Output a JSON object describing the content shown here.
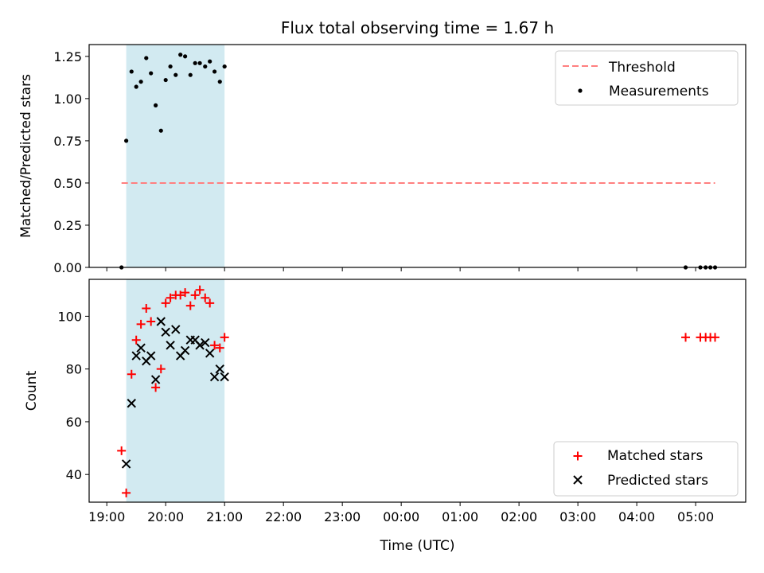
{
  "chart_data": {
    "type": "scatter",
    "title": "Flux total observing time = 1.67 h",
    "xlabel": "Time (UTC)",
    "x_ticks": [
      "19:00",
      "20:00",
      "21:00",
      "22:00",
      "23:00",
      "00:00",
      "01:00",
      "02:00",
      "03:00",
      "04:00",
      "05:00"
    ],
    "x_tick_hours": [
      0,
      1,
      2,
      3,
      4,
      5,
      6,
      7,
      8,
      9,
      10
    ],
    "x_range_hours": [
      -0.3,
      10.85
    ],
    "observing_window_hours": [
      0.33,
      2.0
    ],
    "observing_window_color": "#add8e6",
    "panels": [
      {
        "ylabel": "Matched/Predicted stars",
        "ylim": [
          0.0,
          1.32
        ],
        "y_ticks": [
          "0.00",
          "0.25",
          "0.50",
          "0.75",
          "1.00",
          "1.25"
        ],
        "y_tick_values": [
          0.0,
          0.25,
          0.5,
          0.75,
          1.0,
          1.25
        ],
        "legend_position": "top-right",
        "threshold": {
          "name": "Threshold",
          "value": 0.5,
          "x_from": 0.25,
          "x_to": 10.33,
          "color": "#ff7f7f"
        },
        "series": [
          {
            "name": "Measurements",
            "marker": "dot",
            "color": "#000000",
            "x": [
              0.25,
              0.33,
              0.42,
              0.5,
              0.58,
              0.67,
              0.75,
              0.83,
              0.92,
              1.0,
              1.08,
              1.17,
              1.25,
              1.33,
              1.42,
              1.5,
              1.58,
              1.67,
              1.75,
              1.83,
              1.92,
              2.0,
              9.83,
              10.08,
              10.17,
              10.25,
              10.33
            ],
            "y": [
              0.0,
              0.75,
              1.16,
              1.07,
              1.1,
              1.24,
              1.15,
              0.96,
              0.81,
              1.11,
              1.19,
              1.14,
              1.26,
              1.25,
              1.14,
              1.21,
              1.21,
              1.19,
              1.22,
              1.16,
              1.1,
              1.19,
              0.0,
              0.0,
              0.0,
              0.0,
              0.0
            ]
          }
        ]
      },
      {
        "ylabel": "Count",
        "ylim": [
          29.5,
          114
        ],
        "y_ticks": [
          "40",
          "60",
          "80",
          "100"
        ],
        "y_tick_values": [
          40,
          60,
          80,
          100
        ],
        "legend_position": "bottom-right",
        "series": [
          {
            "name": "Matched stars",
            "marker": "plus",
            "color": "#ff0000",
            "x": [
              0.25,
              0.33,
              0.42,
              0.5,
              0.58,
              0.67,
              0.75,
              0.83,
              0.92,
              1.0,
              1.08,
              1.17,
              1.25,
              1.33,
              1.42,
              1.5,
              1.58,
              1.67,
              1.75,
              1.83,
              1.92,
              2.0,
              9.83,
              10.08,
              10.17,
              10.25,
              10.33
            ],
            "y": [
              49,
              33,
              78,
              91,
              97,
              103,
              98,
              73,
              80,
              105,
              107,
              108,
              108,
              109,
              104,
              108,
              110,
              107,
              105,
              89,
              88,
              92,
              92,
              92,
              92,
              92,
              92
            ]
          },
          {
            "name": "Predicted stars",
            "marker": "x",
            "color": "#000000",
            "x": [
              0.33,
              0.42,
              0.5,
              0.58,
              0.67,
              0.75,
              0.83,
              0.92,
              1.0,
              1.08,
              1.17,
              1.25,
              1.33,
              1.42,
              1.5,
              1.58,
              1.67,
              1.75,
              1.83,
              1.92,
              2.0
            ],
            "y": [
              44,
              67,
              85,
              88,
              83,
              85,
              76,
              98,
              94,
              89,
              95,
              85,
              87,
              91,
              91,
              89,
              90,
              86,
              77,
              80,
              77
            ]
          }
        ]
      }
    ]
  }
}
